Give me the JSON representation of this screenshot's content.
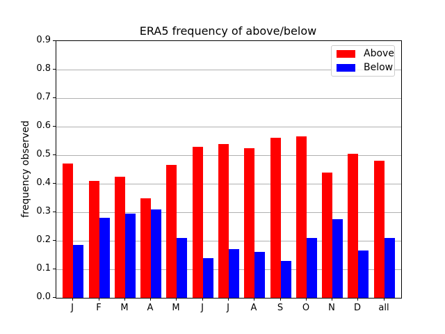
{
  "figure": {
    "title": "ERA5 frequency of above/below",
    "ylabel": "frequency observed"
  },
  "legend": {
    "items": [
      {
        "label": "Above",
        "color": "#ff0000"
      },
      {
        "label": "Below",
        "color": "#0000ff"
      }
    ]
  },
  "chart_data": {
    "type": "bar",
    "title": "ERA5 frequency of above/below",
    "xlabel": "",
    "ylabel": "frequency observed",
    "categories": [
      "J",
      "F",
      "M",
      "A",
      "M",
      "J",
      "J",
      "A",
      "S",
      "O",
      "N",
      "D",
      "all"
    ],
    "series": [
      {
        "name": "Above",
        "color": "#ff0000",
        "values": [
          0.47,
          0.41,
          0.425,
          0.35,
          0.465,
          0.53,
          0.54,
          0.525,
          0.56,
          0.565,
          0.44,
          0.505,
          0.48
        ]
      },
      {
        "name": "Below",
        "color": "#0000ff",
        "values": [
          0.185,
          0.28,
          0.295,
          0.31,
          0.21,
          0.14,
          0.17,
          0.16,
          0.13,
          0.21,
          0.275,
          0.165,
          0.21
        ]
      }
    ],
    "ylim": [
      0.0,
      0.9
    ],
    "yticks": [
      "0.0",
      "0.1",
      "0.2",
      "0.3",
      "0.4",
      "0.5",
      "0.6",
      "0.7",
      "0.8",
      "0.9"
    ],
    "grid": true,
    "grid_color": "#b0b0b0",
    "legend_position": "upper right"
  }
}
